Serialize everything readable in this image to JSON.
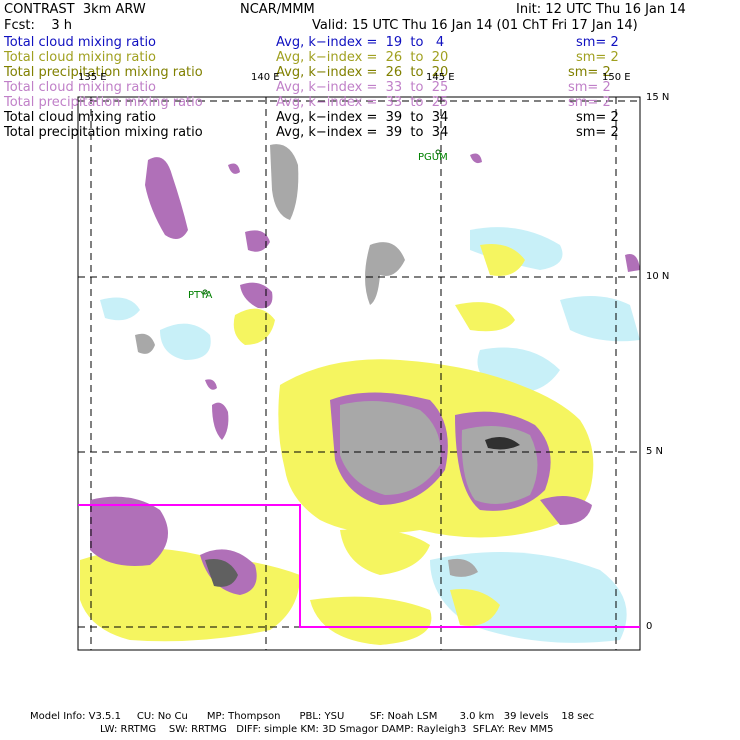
{
  "header": {
    "title": "CONTRAST  3km ARW",
    "center": "NCAR/MMM",
    "init": "Init: 12 UTC Thu 16 Jan 14",
    "fcst": "Fcst:    3 h",
    "valid": "Valid: 15 UTC Thu 16 Jan 14 (01 ChT Fri 17 Jan 14)"
  },
  "legend": [
    {
      "field": "Total cloud mixing ratio",
      "range": "Avg, k−index =  19  to   4",
      "sm": "sm= 2",
      "color": "#1010c0"
    },
    {
      "field": "Total cloud mixing ratio",
      "range": "Avg, k−index =  26  to  20",
      "sm": "sm= 2",
      "color": "#a0a020"
    },
    {
      "field": "Total precipitation mixing ratio",
      "range": "Avg, k−index =  26  to  20",
      "sm": "sm= 2",
      "color": "#808000"
    },
    {
      "field": "Total cloud mixing ratio",
      "range": "Avg, k−index =  33  to  25",
      "sm": "sm= 2",
      "color": "#c080c8"
    },
    {
      "field": "Total precipitation mixing ratio",
      "range": "Avg, k−index =  33  to  25",
      "sm": "sm= 2",
      "color": "#c080c8"
    },
    {
      "field": "Total cloud mixing ratio",
      "range": "Avg, k−index =  39  to  34",
      "sm": "sm= 2",
      "color": "#000000"
    },
    {
      "field": "Total precipitation mixing ratio",
      "range": "Avg, k−index =  39  to  34",
      "sm": "sm= 2",
      "color": "#000000"
    }
  ],
  "map": {
    "lon_labels": [
      "135 E",
      "140 E",
      "145 E",
      "150 E"
    ],
    "lat_labels": [
      "15 N",
      "10 N",
      "5 N",
      "0"
    ],
    "stations": [
      "PGUM",
      "PTYA"
    ],
    "colors": {
      "gray": "#a8a8a8",
      "purple": "#b070b8",
      "yellow": "#f5f560",
      "cyan": "#c8f0f8",
      "magenta": "#ff00ff"
    }
  },
  "footer": {
    "line1": "Model Info: V3.5.1     CU: No Cu      MP: Thompson      PBL: YSU        SF: Noah LSM       3.0 km   39 levels    18 sec",
    "line2": "LW: RRTMG    SW: RRTMG   DIFF: simple KM: 3D Smagor DAMP: Rayleigh3  SFLAY: Rev MM5"
  }
}
